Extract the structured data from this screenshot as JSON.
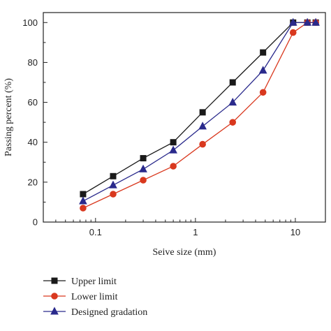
{
  "chart_data": {
    "type": "line",
    "xlabel": "Seive size (mm)",
    "ylabel": "Passing percent (%)",
    "xscale": "log",
    "xlim": [
      0.03,
      20
    ],
    "ylim": [
      0,
      105
    ],
    "x_ticks": [
      0.1,
      1,
      10
    ],
    "x_tick_labels": [
      "0.1",
      "1",
      "10"
    ],
    "y_ticks": [
      0,
      20,
      40,
      60,
      80,
      100
    ],
    "y_tick_labels": [
      "0",
      "20",
      "40",
      "60",
      "80",
      "100"
    ],
    "grid": false,
    "legend_position": "bottom-left, below plot",
    "x": [
      0.075,
      0.15,
      0.3,
      0.6,
      1.18,
      2.36,
      4.75,
      9.5,
      13.2,
      16
    ],
    "series": [
      {
        "name": "Upper limit",
        "color": "#1a1a1a",
        "marker": "square",
        "values": [
          14,
          23,
          32,
          40,
          55,
          70,
          85,
          100,
          100,
          100
        ]
      },
      {
        "name": "Lower limit",
        "color": "#d9381e",
        "marker": "circle",
        "values": [
          7,
          14,
          21,
          28,
          39,
          50,
          65,
          95,
          100,
          100
        ]
      },
      {
        "name": "Designed gradation",
        "color": "#2a2a8c",
        "marker": "triangle",
        "values": [
          10.5,
          18.5,
          26.5,
          36,
          48,
          60,
          76,
          100,
          100,
          100
        ]
      }
    ]
  }
}
